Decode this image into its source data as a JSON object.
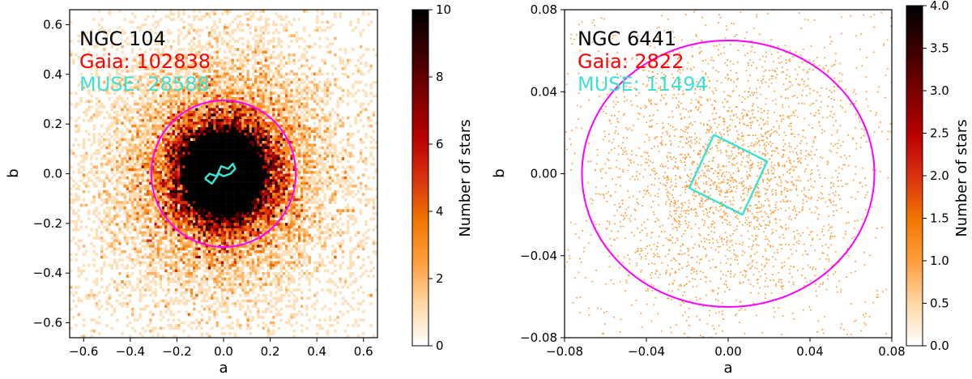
{
  "chart_data": [
    {
      "type": "heatmap",
      "title": "",
      "xlabel": "a",
      "ylabel": "b",
      "xlim": [
        -0.66,
        0.66
      ],
      "ylim": [
        -0.66,
        0.66
      ],
      "xticks": [
        -0.6,
        -0.4,
        -0.2,
        0.0,
        0.2,
        0.4,
        0.6
      ],
      "xtick_labels": [
        "−0.6",
        "−0.4",
        "−0.2",
        "0.0",
        "0.2",
        "0.4",
        "0.6"
      ],
      "yticks": [
        -0.6,
        -0.4,
        -0.2,
        0.0,
        0.2,
        0.4,
        0.6
      ],
      "ytick_labels": [
        "−0.6",
        "−0.4",
        "−0.2",
        "0.0",
        "0.2",
        "0.4",
        "0.6"
      ],
      "annotations": [
        {
          "text": "NGC 104",
          "color": "#000000"
        },
        {
          "text": "Gaia: 102838",
          "color": "#ff0000"
        },
        {
          "text": "MUSE: 28588",
          "color": "#40e0d0"
        }
      ],
      "colorbar": {
        "label": "Number of stars",
        "range": [
          0,
          10
        ],
        "ticks": [
          0,
          2,
          4,
          6,
          8,
          10
        ],
        "tick_labels": [
          "0",
          "2",
          "4",
          "6",
          "8",
          "10"
        ]
      },
      "stellar_distribution": {
        "scale": 0.11,
        "peak_density": 10
      },
      "circle": {
        "center": [
          0.0,
          0.0
        ],
        "radius_a": 0.31,
        "radius_b": 0.295,
        "color": "#ff00ff"
      },
      "muse_footprint": {
        "color": "#40e0d0",
        "points": [
          [
            -0.08,
            -0.02
          ],
          [
            -0.06,
            0.0
          ],
          [
            -0.03,
            -0.01
          ],
          [
            -0.01,
            0.03
          ],
          [
            0.02,
            0.02
          ],
          [
            0.04,
            0.04
          ],
          [
            0.05,
            0.02
          ],
          [
            0.03,
            0.0
          ],
          [
            0.0,
            -0.01
          ],
          [
            -0.02,
            0.0
          ],
          [
            -0.05,
            -0.04
          ],
          [
            -0.08,
            -0.02
          ]
        ]
      }
    },
    {
      "type": "heatmap",
      "title": "",
      "xlabel": "a",
      "ylabel": "b",
      "xlim": [
        -0.08,
        0.08
      ],
      "ylim": [
        -0.08,
        0.08
      ],
      "xticks": [
        -0.08,
        -0.04,
        0.0,
        0.04,
        0.08
      ],
      "xtick_labels": [
        "−0.08",
        "−0.04",
        "0.00",
        "0.04",
        "0.08"
      ],
      "yticks": [
        -0.08,
        -0.04,
        0.0,
        0.04,
        0.08
      ],
      "ytick_labels": [
        "−0.08",
        "−0.04",
        "0.00",
        "0.04",
        "0.08"
      ],
      "annotations": [
        {
          "text": "NGC 6441",
          "color": "#000000"
        },
        {
          "text": "Gaia: 2822",
          "color": "#ff0000"
        },
        {
          "text": "MUSE: 11494",
          "color": "#40e0d0"
        }
      ],
      "colorbar": {
        "label": "Number of stars",
        "range": [
          0.0,
          4.0
        ],
        "ticks": [
          0.0,
          0.5,
          1.0,
          1.5,
          2.0,
          2.5,
          3.0,
          3.5,
          4.0
        ],
        "tick_labels": [
          "0.0",
          "0.5",
          "1.0",
          "1.5",
          "2.0",
          "2.5",
          "3.0",
          "3.5",
          "4.0"
        ]
      },
      "stellar_distribution": {
        "count": 2822,
        "point_value": 1.0
      },
      "circle": {
        "center": [
          0.0,
          0.0
        ],
        "radius_a": 0.0715,
        "radius_b": 0.065,
        "color": "#ff00ff"
      },
      "muse_footprint": {
        "color": "#40e0d0",
        "points": [
          [
            -0.007,
            0.019
          ],
          [
            0.019,
            0.006
          ],
          [
            0.007,
            -0.02
          ],
          [
            -0.019,
            -0.007
          ],
          [
            -0.007,
            0.019
          ]
        ]
      }
    }
  ]
}
